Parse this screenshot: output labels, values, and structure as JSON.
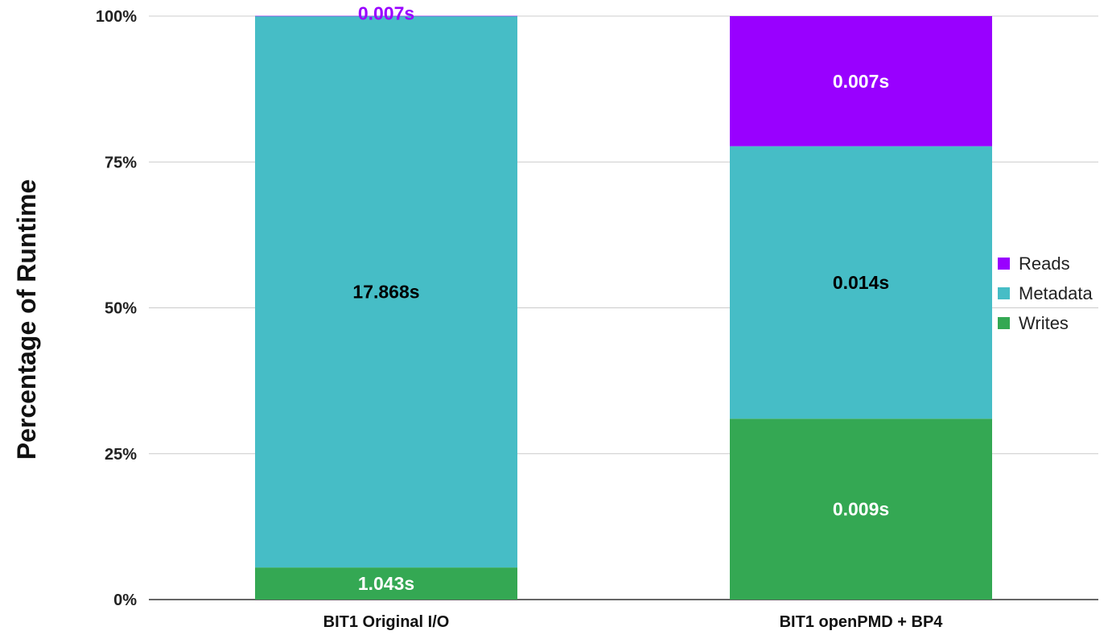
{
  "chart_data": {
    "type": "bar",
    "stacked": true,
    "normalized": true,
    "xlabel": "",
    "ylabel": "Percentage of Runtime",
    "ylim": [
      0,
      100
    ],
    "yticks": [
      "0%",
      "25%",
      "50%",
      "75%",
      "100%"
    ],
    "grid": true,
    "legend_position": "right",
    "categories": [
      "BIT1 Original I/O",
      "BIT1 openPMD + BP4"
    ],
    "series": [
      {
        "name": "Writes",
        "color": "#34a853",
        "values": [
          5.5,
          31.0
        ],
        "labels": [
          "1.043s",
          "0.009s"
        ],
        "label_color": "#ffffff"
      },
      {
        "name": "Metadata",
        "color": "#46bdc6",
        "values": [
          94.5,
          46.7
        ],
        "labels": [
          "17.868s",
          "0.014s"
        ],
        "label_color": "#000000"
      },
      {
        "name": "Reads",
        "color": "#9900ff",
        "values": [
          0.04,
          22.3
        ],
        "labels": [
          "0.007s",
          "0.007s"
        ],
        "label_color": "#ffffff"
      }
    ],
    "legend": [
      "Reads",
      "Metadata",
      "Writes"
    ],
    "overflow_label_color": "#9900ff"
  }
}
